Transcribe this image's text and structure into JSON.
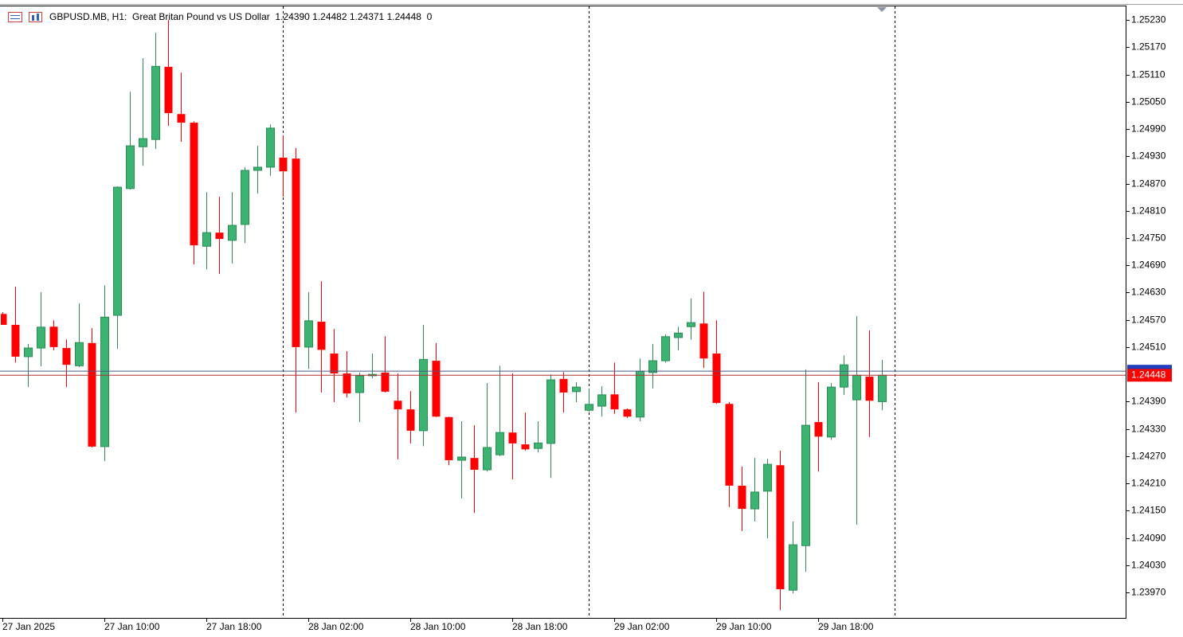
{
  "chart_data": {
    "type": "candlestick",
    "title": "GBPUSD.MB, H1:  Great Britan Pound vs US Dollar  1.24390 1.24482 1.24371 1.24448  0",
    "categories": [
      "27 Jan 2025",
      null,
      null,
      null,
      null,
      null,
      null,
      null,
      "27 Jan 10:00",
      null,
      null,
      null,
      null,
      null,
      null,
      null,
      "27 Jan 18:00",
      null,
      null,
      null,
      null,
      null,
      null,
      null,
      "28 Jan 02:00",
      null,
      null,
      null,
      null,
      null,
      null,
      null,
      "28 Jan 10:00",
      null,
      null,
      null,
      null,
      null,
      null,
      null,
      "28 Jan 18:00",
      null,
      null,
      null,
      null,
      null,
      null,
      null,
      "29 Jan 02:00",
      null,
      null,
      null,
      null,
      null,
      null,
      null,
      "29 Jan 10:00",
      null,
      null,
      null,
      null,
      null,
      null,
      null,
      "29 Jan 18:00",
      null,
      null,
      null,
      null,
      null
    ],
    "open": [
      1.24583,
      1.24559,
      1.24489,
      1.24508,
      1.24555,
      1.24508,
      1.24469,
      1.24519,
      1.24291,
      1.2458,
      1.24859,
      1.24951,
      1.24967,
      1.25127,
      1.25023,
      1.25004,
      1.24732,
      1.24762,
      1.24745,
      1.2478,
      1.24899,
      1.24906,
      1.24927,
      1.24925,
      1.2451,
      1.24566,
      1.24496,
      1.24452,
      1.2441,
      1.24447,
      1.24454,
      1.24392,
      1.24373,
      1.24326,
      1.2448,
      1.24356,
      1.24261,
      1.24266,
      1.2424,
      1.24273,
      1.24322,
      1.24296,
      1.24287,
      1.24298,
      1.2444,
      1.24412,
      1.24371,
      1.2438,
      1.24406,
      1.24373,
      1.24356,
      1.24454,
      1.2448,
      1.24531,
      1.24555,
      1.24562,
      1.24496,
      1.24385,
      1.24205,
      1.24154,
      1.24193,
      1.2425,
      1.23975,
      1.24073,
      1.24345,
      1.24312,
      1.24422,
      1.24394,
      1.24445,
      1.2439
    ],
    "high": [
      1.24587,
      1.24643,
      1.24517,
      1.24631,
      1.24569,
      1.24527,
      1.24606,
      1.24552,
      1.24646,
      1.24864,
      1.25072,
      1.25146,
      1.25202,
      1.2523,
      1.25114,
      1.25007,
      1.24851,
      1.24841,
      1.24851,
      1.24906,
      1.24953,
      1.25,
      1.24976,
      1.24948,
      1.24631,
      1.24655,
      1.2455,
      1.24501,
      1.24454,
      1.24496,
      1.24534,
      1.24452,
      1.24413,
      1.24559,
      1.24519,
      1.24357,
      1.24347,
      1.24338,
      1.24431,
      1.24469,
      1.24452,
      1.24366,
      1.24347,
      1.2445,
      1.24455,
      1.24433,
      1.24419,
      1.24424,
      1.24476,
      1.24375,
      1.24485,
      1.24517,
      1.24538,
      1.24555,
      1.24617,
      1.24632,
      1.24569,
      1.24389,
      1.24247,
      1.24266,
      1.24264,
      1.24282,
      1.24126,
      1.24461,
      1.24433,
      1.24431,
      1.24492,
      1.24578,
      1.24547,
      1.24482
    ],
    "low": [
      1.24559,
      1.24476,
      1.24422,
      1.24468,
      1.24503,
      1.24422,
      1.24466,
      1.24289,
      1.24259,
      1.24506,
      1.24857,
      1.24909,
      1.24946,
      1.24997,
      1.24962,
      1.24692,
      1.24681,
      1.24671,
      1.24694,
      1.24739,
      1.24848,
      1.24887,
      1.24841,
      1.24366,
      1.24462,
      1.2441,
      1.24389,
      1.24399,
      1.24345,
      1.24441,
      1.2441,
      1.24263,
      1.24298,
      1.24292,
      1.24356,
      1.2425,
      1.24177,
      1.24145,
      1.24236,
      1.2427,
      1.24219,
      1.24282,
      1.24278,
      1.24222,
      1.24366,
      1.24389,
      1.24368,
      1.24357,
      1.24363,
      1.24354,
      1.24347,
      1.24419,
      1.24476,
      1.24503,
      1.24526,
      1.24464,
      1.24385,
      1.24158,
      1.24105,
      1.24126,
      1.24089,
      1.23931,
      1.23968,
      1.24015,
      1.24236,
      1.24306,
      1.24405,
      1.24119,
      1.24312,
      1.24371
    ],
    "close": [
      1.24559,
      1.24489,
      1.24508,
      1.24554,
      1.2451,
      1.24471,
      1.2452,
      1.24291,
      1.24576,
      1.24862,
      1.24953,
      1.24969,
      1.25128,
      1.25025,
      1.25004,
      1.24734,
      1.24762,
      1.24748,
      1.24778,
      1.24899,
      1.24906,
      1.24992,
      1.24897,
      1.2451,
      1.24568,
      1.24504,
      1.24452,
      1.24408,
      1.24447,
      1.2445,
      1.24412,
      1.24373,
      1.24326,
      1.24483,
      1.24357,
      1.24261,
      1.24268,
      1.2424,
      1.24289,
      1.24322,
      1.24298,
      1.24285,
      1.24299,
      1.24438,
      1.2441,
      1.24422,
      1.24384,
      1.24405,
      1.24373,
      1.24357,
      1.24457,
      1.2448,
      1.24533,
      1.24541,
      1.24564,
      1.24485,
      1.24387,
      1.24205,
      1.24154,
      1.24191,
      1.24252,
      1.23977,
      1.24075,
      1.24338,
      1.24313,
      1.24422,
      1.24471,
      1.24448,
      1.24392,
      1.24448
    ],
    "up_color": "#3cb371",
    "down_color": "#ff0000",
    "ylim": [
      1.23914,
      1.2526
    ],
    "yticks": [
      {
        "value": 1.2523,
        "label": "1.25230"
      },
      {
        "value": 1.2517,
        "label": "1.25170"
      },
      {
        "value": 1.2511,
        "label": "1.25110"
      },
      {
        "value": 1.2505,
        "label": "1.25050"
      },
      {
        "value": 1.2499,
        "label": "1.24990"
      },
      {
        "value": 1.2493,
        "label": "1.24930"
      },
      {
        "value": 1.2487,
        "label": "1.24870"
      },
      {
        "value": 1.2481,
        "label": "1.24810"
      },
      {
        "value": 1.2475,
        "label": "1.24750"
      },
      {
        "value": 1.2469,
        "label": "1.24690"
      },
      {
        "value": 1.2463,
        "label": "1.24630"
      },
      {
        "value": 1.2457,
        "label": "1.24570"
      },
      {
        "value": 1.2451,
        "label": "1.24510"
      },
      {
        "value": 1.2439,
        "label": "1.24390"
      },
      {
        "value": 1.2433,
        "label": "1.24330"
      },
      {
        "value": 1.2427,
        "label": "1.24270"
      },
      {
        "value": 1.2421,
        "label": "1.24210"
      },
      {
        "value": 1.2415,
        "label": "1.24150"
      },
      {
        "value": 1.2409,
        "label": "1.24090"
      },
      {
        "value": 1.2403,
        "label": "1.24030"
      },
      {
        "value": 1.2397,
        "label": "1.23970"
      }
    ],
    "bid": 1.24448,
    "ask": 1.24457
  }
}
